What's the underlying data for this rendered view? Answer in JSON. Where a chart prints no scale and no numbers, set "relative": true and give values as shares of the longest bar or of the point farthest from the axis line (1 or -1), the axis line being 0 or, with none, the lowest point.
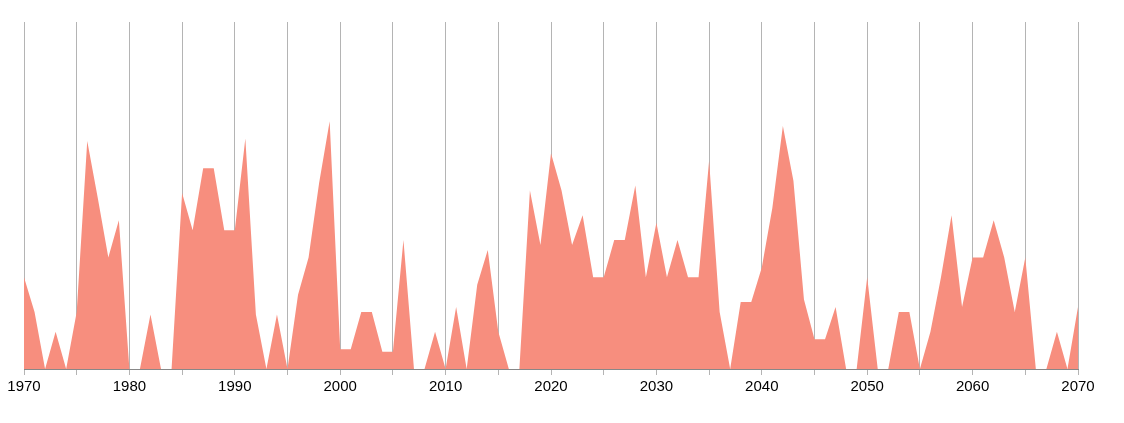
{
  "chart_data": {
    "type": "area",
    "relative": true,
    "x": [
      1970,
      1971,
      1972,
      1973,
      1974,
      1975,
      1976,
      1977,
      1978,
      1979,
      1980,
      1981,
      1982,
      1983,
      1984,
      1985,
      1986,
      1987,
      1988,
      1989,
      1990,
      1991,
      1992,
      1993,
      1994,
      1995,
      1996,
      1997,
      1998,
      1999,
      2000,
      2001,
      2002,
      2003,
      2004,
      2005,
      2006,
      2007,
      2008,
      2009,
      2010,
      2011,
      2012,
      2013,
      2014,
      2015,
      2016,
      2017,
      2018,
      2019,
      2020,
      2021,
      2022,
      2023,
      2024,
      2025,
      2026,
      2027,
      2028,
      2029,
      2030,
      2031,
      2032,
      2033,
      2034,
      2035,
      2036,
      2037,
      2038,
      2039,
      2040,
      2041,
      2042,
      2043,
      2044,
      2045,
      2046,
      2047,
      2048,
      2049,
      2050,
      2051,
      2052,
      2053,
      2054,
      2055,
      2056,
      2057,
      2058,
      2059,
      2060,
      2061,
      2062,
      2063,
      2064,
      2065,
      2066,
      2067,
      2068,
      2069,
      2070
    ],
    "series": [
      {
        "color": "#f78e7e",
        "values": [
          0.37,
          0.23,
          0,
          0.15,
          0,
          0.23,
          0.92,
          0.69,
          0.45,
          0.6,
          0,
          0,
          0.22,
          0,
          0,
          0.71,
          0.56,
          0.81,
          0.81,
          0.56,
          0.56,
          0.93,
          0.22,
          0,
          0.22,
          0,
          0.3,
          0.45,
          0.75,
          1,
          0.08,
          0.08,
          0.23,
          0.23,
          0.07,
          0.07,
          0.52,
          0,
          0,
          0.15,
          0,
          0.25,
          0,
          0.34,
          0.48,
          0.15,
          0,
          0,
          0.72,
          0.5,
          0.87,
          0.72,
          0.5,
          0.62,
          0.37,
          0.37,
          0.52,
          0.52,
          0.74,
          0.37,
          0.59,
          0.37,
          0.52,
          0.37,
          0.37,
          0.84,
          0.23,
          0,
          0.27,
          0.27,
          0.41,
          0.65,
          0.98,
          0.76,
          0.28,
          0.12,
          0.12,
          0.25,
          0,
          0,
          0.37,
          0,
          0,
          0.23,
          0.23,
          0,
          0.15,
          0.37,
          0.62,
          0.25,
          0.45,
          0.45,
          0.6,
          0.45,
          0.23,
          0.45,
          0,
          0,
          0.15,
          0,
          0.25
        ]
      }
    ],
    "xlim": [
      1970,
      2070
    ],
    "xticks": [
      1970,
      {
        "value": 1975,
        "label": null
      },
      1980,
      {
        "value": 1985,
        "label": null
      },
      1990,
      {
        "value": 1995,
        "label": null
      },
      2000,
      {
        "value": 2005,
        "label": null
      },
      2010,
      {
        "value": 2015,
        "label": null
      },
      2020,
      {
        "value": 2025,
        "label": null
      },
      2030,
      {
        "value": 2035,
        "label": null
      },
      2040,
      {
        "value": 2045,
        "label": null
      },
      2050,
      {
        "value": 2055,
        "label": null
      },
      2060,
      {
        "value": 2065,
        "label": null
      },
      2070
    ],
    "grid": "x",
    "legend": false
  }
}
